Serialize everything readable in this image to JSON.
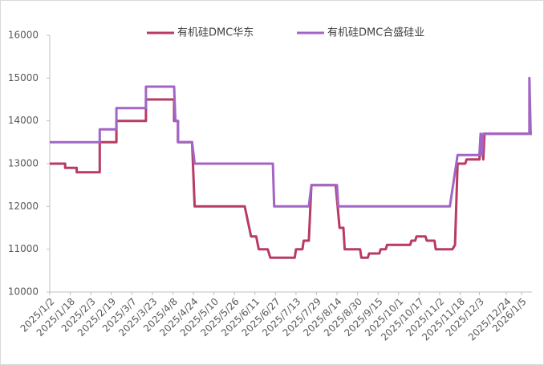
{
  "chart_data": {
    "type": "line",
    "series": [
      {
        "name": "有机硅DMC华东",
        "color": "#b83b62",
        "x": [
          "2025/1/2",
          "2025/1/14",
          "2025/1/14",
          "2025/1/23",
          "2025/1/23",
          "2025/2/10",
          "2025/2/10",
          "2025/2/23",
          "2025/2/23",
          "2025/3/18",
          "2025/3/18",
          "2025/4/9",
          "2025/4/9",
          "2025/4/12",
          "2025/4/12",
          "2025/4/23",
          "2025/4/25",
          "2025/6/3",
          "2025/6/8",
          "2025/6/12",
          "2025/6/14",
          "2025/6/21",
          "2025/6/23",
          "2025/7/12",
          "2025/7/13",
          "2025/7/18",
          "2025/7/19",
          "2025/7/23",
          "2025/7/25",
          "2025/8/13",
          "2025/8/16",
          "2025/8/19",
          "2025/8/20",
          "2025/9/1",
          "2025/9/2",
          "2025/9/7",
          "2025/9/8",
          "2025/9/16",
          "2025/9/17",
          "2025/9/21",
          "2025/9/22",
          "2025/10/10",
          "2025/10/11",
          "2025/10/14",
          "2025/10/15",
          "2025/10/22",
          "2025/10/23",
          "2025/10/29",
          "2025/10/30",
          "2025/11/12",
          "2025/11/14",
          "2025/11/16",
          "2025/11/22",
          "2025/11/23",
          "2025/12/3",
          "2025/12/4",
          "2025/12/6",
          "2025/12/7",
          "2026/1/13"
        ],
        "values": [
          13000,
          13000,
          12900,
          12900,
          12800,
          12800,
          13500,
          13500,
          14000,
          14000,
          14500,
          14500,
          14000,
          14000,
          13500,
          13500,
          12000,
          12000,
          11300,
          11300,
          11000,
          11000,
          10800,
          10800,
          11000,
          11000,
          11200,
          11200,
          12500,
          12500,
          11500,
          11500,
          11000,
          11000,
          10800,
          10800,
          10900,
          10900,
          11000,
          11000,
          11100,
          11100,
          11200,
          11200,
          11300,
          11300,
          11200,
          11200,
          11000,
          11000,
          11100,
          13000,
          13000,
          13100,
          13100,
          13700,
          13100,
          13700,
          13700
        ]
      },
      {
        "name": "有机硅DMC合盛硅业",
        "color": "#a365c5",
        "x": [
          "2025/1/2",
          "2025/2/10",
          "2025/2/10",
          "2025/2/23",
          "2025/2/23",
          "2025/3/18",
          "2025/3/18",
          "2025/4/9",
          "2025/4/10",
          "2025/4/12",
          "2025/4/12",
          "2025/4/23",
          "2025/4/25",
          "2025/6/25",
          "2025/6/26",
          "2025/7/23",
          "2025/7/25",
          "2025/8/14",
          "2025/8/15",
          "2025/11/10",
          "2025/11/16",
          "2025/12/3",
          "2025/12/4",
          "2025/12/5",
          "2025/12/6",
          "2026/1/11",
          "2026/1/11",
          "2026/1/12",
          "2026/1/13"
        ],
        "values": [
          13500,
          13500,
          13800,
          13800,
          14300,
          14300,
          14800,
          14800,
          14000,
          14000,
          13500,
          13500,
          13000,
          13000,
          12000,
          12000,
          12500,
          12500,
          12000,
          12000,
          13200,
          13200,
          13700,
          13200,
          13700,
          13700,
          15000,
          13700,
          13700
        ]
      }
    ],
    "xlim": [
      "2025/1/2",
      "2026/1/13"
    ],
    "xticks": [
      "2025/1/2",
      "2025/1/18",
      "2025/2/3",
      "2025/2/19",
      "2025/3/7",
      "2025/3/23",
      "2025/4/8",
      "2025/4/24",
      "2025/5/10",
      "2025/5/26",
      "2025/6/11",
      "2025/6/27",
      "2025/7/13",
      "2025/7/29",
      "2025/8/14",
      "2025/8/30",
      "2025/9/15",
      "2025/10/1",
      "2025/10/17",
      "2025/11/2",
      "2025/11/18",
      "2025/12/3",
      "2025/12/24",
      "2026/1/5"
    ],
    "ylim": [
      10000,
      16000
    ],
    "yticks": [
      10000,
      11000,
      12000,
      13000,
      14000,
      15000,
      16000
    ],
    "legend": "top"
  }
}
